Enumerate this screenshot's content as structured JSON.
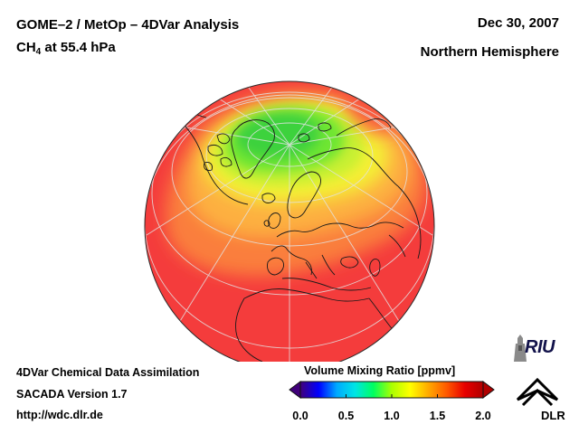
{
  "header": {
    "title": "GOME–2 / MetOp – 4DVar Analysis",
    "species_prefix": "CH",
    "species_subscript": "4",
    "species_suffix": " at 55.4 hPa",
    "date": "Dec 30, 2007",
    "region": "Northern Hemisphere"
  },
  "footer": {
    "line1": "4DVar Chemical Data Assimilation",
    "line2": "SACADA Version 1.7",
    "line3": "http://wdc.dlr.de"
  },
  "colorbar": {
    "title": "Volume Mixing Ratio [ppmv]",
    "ticks": [
      "0.0",
      "0.5",
      "1.0",
      "1.5",
      "2.0"
    ],
    "range": [
      0.0,
      2.0
    ],
    "colors": [
      "#40007a",
      "#0000ff",
      "#00aaff",
      "#00e5e5",
      "#00ff60",
      "#aaff00",
      "#ffff00",
      "#ffaa00",
      "#ff5a00",
      "#e80000",
      "#b00000"
    ]
  },
  "map": {
    "projection": "orthographic",
    "hemisphere": "Northern Hemisphere",
    "field_colors": {
      "background": "#f43c3c",
      "outer": "#f74a40",
      "mid": "#fb8a3c",
      "inner_orange": "#fdb040",
      "yellow": "#f4f034",
      "yellow_green": "#c8f032",
      "green": "#6ee632",
      "deep_green": "#3cd23c"
    }
  },
  "logos": {
    "riu": "RIU",
    "dlr": "DLR"
  }
}
